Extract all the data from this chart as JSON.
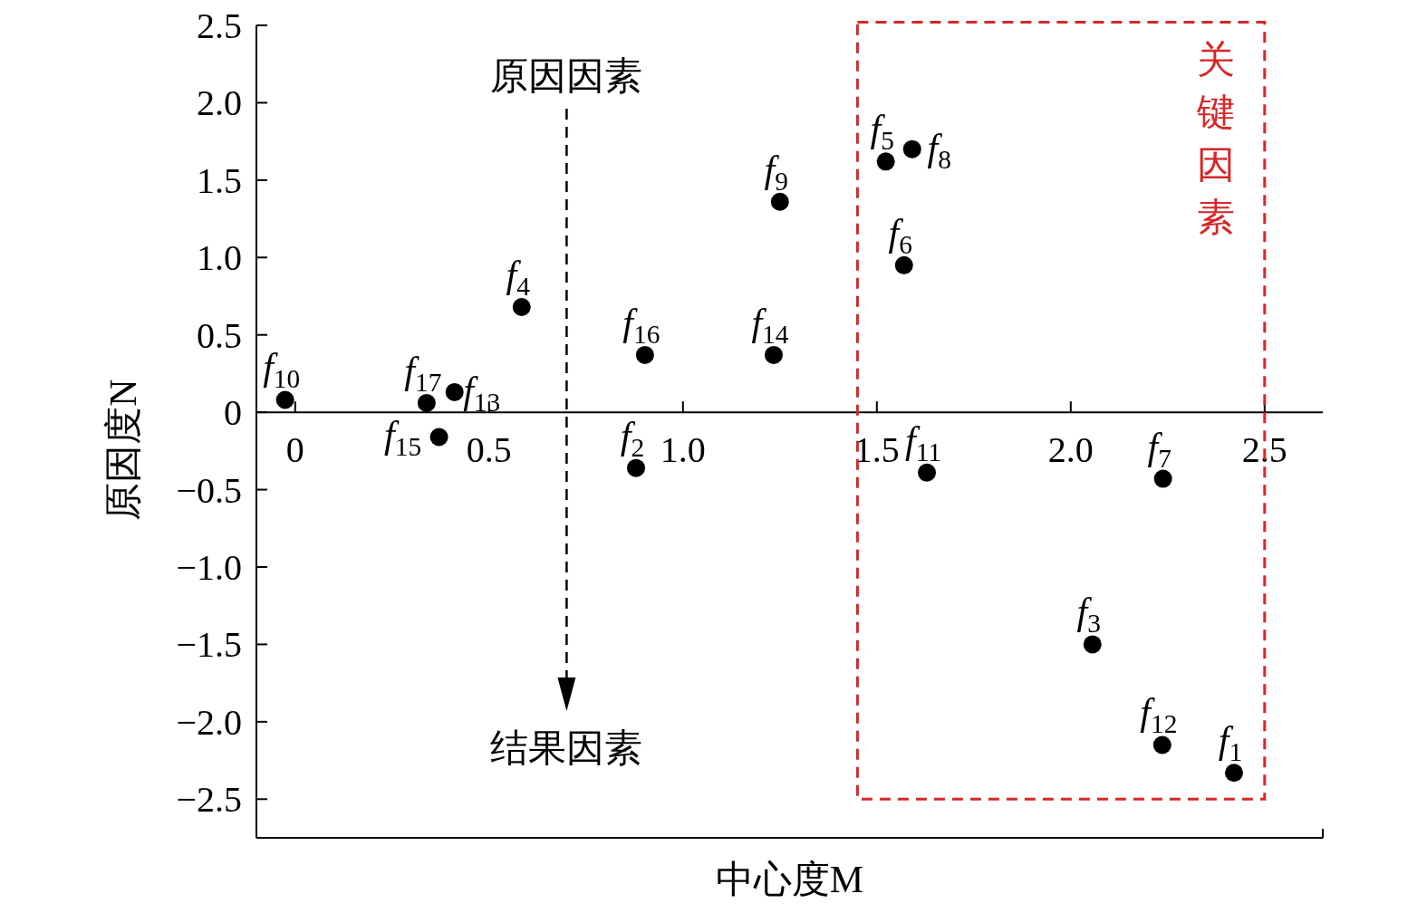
{
  "chart_data": {
    "type": "scatter",
    "xlabel": "中心度M",
    "ylabel": "原因度N",
    "xlim": [
      -0.1,
      2.65
    ],
    "ylim": [
      -2.75,
      2.5
    ],
    "xticks": [
      0,
      0.5,
      {
        "value": 1,
        "label": "1.0"
      },
      1.5,
      {
        "value": 2,
        "label": "2.0"
      },
      2.5
    ],
    "yticks": [
      {
        "value": -2.5,
        "label": "−2.5"
      },
      {
        "value": -2,
        "label": "−2.0"
      },
      {
        "value": -1.5,
        "label": "−1.5"
      },
      {
        "value": -1,
        "label": "−1.0"
      },
      {
        "value": -0.5,
        "label": "−0.5"
      },
      0,
      0.5,
      {
        "value": 1,
        "label": "1.0"
      },
      1.5,
      {
        "value": 2,
        "label": "2.0"
      },
      2.5
    ],
    "marker": "circle",
    "grid": false,
    "series": [
      {
        "color": "#000000",
        "x": [
          -0.026,
          0.339,
          0.371,
          0.411,
          0.584,
          0.902,
          0.879,
          1.234,
          1.25,
          1.523,
          1.591,
          1.57,
          1.629,
          2.238,
          2.056,
          2.236,
          2.421
        ],
        "values": [
          0.08,
          0.06,
          -0.16,
          0.13,
          0.68,
          0.37,
          -0.36,
          0.37,
          1.36,
          1.62,
          1.7,
          0.95,
          -0.39,
          -0.43,
          -1.5,
          -2.15,
          -2.33
        ]
      }
    ],
    "annotations": [
      {
        "text": "f$_{10}$",
        "x": -0.026,
        "y": 0.08
      },
      {
        "text": "f$_{17}$",
        "x": 0.339,
        "y": 0.06
      },
      {
        "text": "f$_{15}$",
        "x": 0.371,
        "y": -0.16
      },
      {
        "text": "f$_{13}$",
        "x": 0.411,
        "y": 0.13
      },
      {
        "text": "f$_{4}$",
        "x": 0.584,
        "y": 0.68
      },
      {
        "text": "f$_{16}$",
        "x": 0.902,
        "y": 0.37
      },
      {
        "text": "f$_{2}$",
        "x": 0.879,
        "y": -0.36
      },
      {
        "text": "f$_{14}$",
        "x": 1.234,
        "y": 0.37
      },
      {
        "text": "f$_{9}$",
        "x": 1.25,
        "y": 1.36
      },
      {
        "text": "f$_{5}$",
        "x": 1.523,
        "y": 1.62
      },
      {
        "text": "f$_{8}$",
        "x": 1.591,
        "y": 1.7
      },
      {
        "text": "f$_{6}$",
        "x": 1.57,
        "y": 0.95
      },
      {
        "text": "f$_{11}$",
        "x": 1.629,
        "y": -0.39
      },
      {
        "text": "f$_{7}$",
        "x": 2.238,
        "y": -0.43
      },
      {
        "text": "f$_{3}$",
        "x": 2.056,
        "y": -1.5
      },
      {
        "text": "f$_{12}$",
        "x": 2.236,
        "y": -2.15
      },
      {
        "text": "f$_{1}$",
        "x": 2.421,
        "y": -2.33
      },
      "原因因素",
      "结果因素",
      "关键因素"
    ]
  }
}
